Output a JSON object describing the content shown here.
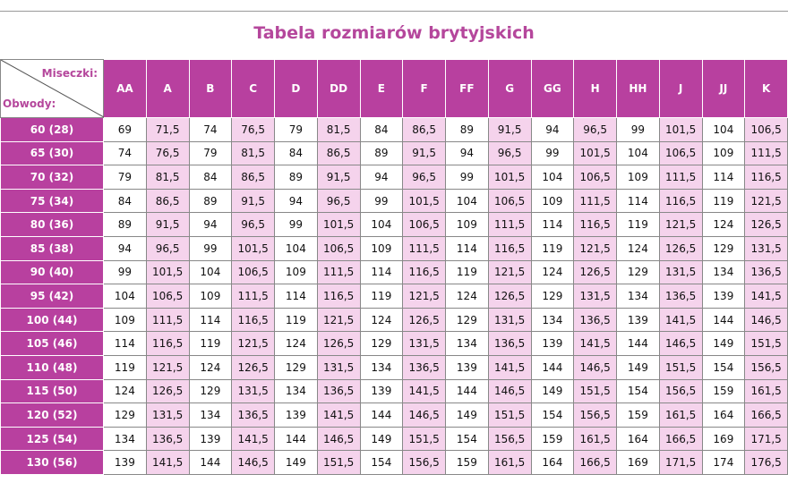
{
  "title": "Tabela rozmiarów brytyjskich",
  "table": {
    "corner_top": "Miseczki:",
    "corner_bottom": "Obwody:",
    "columns": [
      "AA",
      "A",
      "B",
      "C",
      "D",
      "DD",
      "E",
      "F",
      "FF",
      "G",
      "GG",
      "H",
      "HH",
      "J",
      "JJ",
      "K"
    ],
    "row_labels": [
      "60 (28)",
      "65 (30)",
      "70 (32)",
      "75 (34)",
      "80 (36)",
      "85 (38)",
      "90 (40)",
      "95 (42)",
      "100 (44)",
      "105 (46)",
      "110 (48)",
      "115 (50)",
      "120 (52)",
      "125 (54)",
      "130 (56)"
    ],
    "rows": [
      [
        "69",
        "71,5",
        "74",
        "76,5",
        "79",
        "81,5",
        "84",
        "86,5",
        "89",
        "91,5",
        "94",
        "96,5",
        "99",
        "101,5",
        "104",
        "106,5"
      ],
      [
        "74",
        "76,5",
        "79",
        "81,5",
        "84",
        "86,5",
        "89",
        "91,5",
        "94",
        "96,5",
        "99",
        "101,5",
        "104",
        "106,5",
        "109",
        "111,5"
      ],
      [
        "79",
        "81,5",
        "84",
        "86,5",
        "89",
        "91,5",
        "94",
        "96,5",
        "99",
        "101,5",
        "104",
        "106,5",
        "109",
        "111,5",
        "114",
        "116,5"
      ],
      [
        "84",
        "86,5",
        "89",
        "91,5",
        "94",
        "96,5",
        "99",
        "101,5",
        "104",
        "106,5",
        "109",
        "111,5",
        "114",
        "116,5",
        "119",
        "121,5"
      ],
      [
        "89",
        "91,5",
        "94",
        "96,5",
        "99",
        "101,5",
        "104",
        "106,5",
        "109",
        "111,5",
        "114",
        "116,5",
        "119",
        "121,5",
        "124",
        "126,5"
      ],
      [
        "94",
        "96,5",
        "99",
        "101,5",
        "104",
        "106,5",
        "109",
        "111,5",
        "114",
        "116,5",
        "119",
        "121,5",
        "124",
        "126,5",
        "129",
        "131,5"
      ],
      [
        "99",
        "101,5",
        "104",
        "106,5",
        "109",
        "111,5",
        "114",
        "116,5",
        "119",
        "121,5",
        "124",
        "126,5",
        "129",
        "131,5",
        "134",
        "136,5"
      ],
      [
        "104",
        "106,5",
        "109",
        "111,5",
        "114",
        "116,5",
        "119",
        "121,5",
        "124",
        "126,5",
        "129",
        "131,5",
        "134",
        "136,5",
        "139",
        "141,5"
      ],
      [
        "109",
        "111,5",
        "114",
        "116,5",
        "119",
        "121,5",
        "124",
        "126,5",
        "129",
        "131,5",
        "134",
        "136,5",
        "139",
        "141,5",
        "144",
        "146,5"
      ],
      [
        "114",
        "116,5",
        "119",
        "121,5",
        "124",
        "126,5",
        "129",
        "131,5",
        "134",
        "136,5",
        "139",
        "141,5",
        "144",
        "146,5",
        "149",
        "151,5"
      ],
      [
        "119",
        "121,5",
        "124",
        "126,5",
        "129",
        "131,5",
        "134",
        "136,5",
        "139",
        "141,5",
        "144",
        "146,5",
        "149",
        "151,5",
        "154",
        "156,5"
      ],
      [
        "124",
        "126,5",
        "129",
        "131,5",
        "134",
        "136,5",
        "139",
        "141,5",
        "144",
        "146,5",
        "149",
        "151,5",
        "154",
        "156,5",
        "159",
        "161,5"
      ],
      [
        "129",
        "131,5",
        "134",
        "136,5",
        "139",
        "141,5",
        "144",
        "146,5",
        "149",
        "151,5",
        "154",
        "156,5",
        "159",
        "161,5",
        "164",
        "166,5"
      ],
      [
        "134",
        "136,5",
        "139",
        "141,5",
        "144",
        "146,5",
        "149",
        "151,5",
        "154",
        "156,5",
        "159",
        "161,5",
        "164",
        "166,5",
        "169",
        "171,5"
      ],
      [
        "139",
        "141,5",
        "144",
        "146,5",
        "149",
        "151,5",
        "154",
        "156,5",
        "159",
        "161,5",
        "164",
        "166,5",
        "169",
        "171,5",
        "174",
        "176,5"
      ]
    ]
  }
}
